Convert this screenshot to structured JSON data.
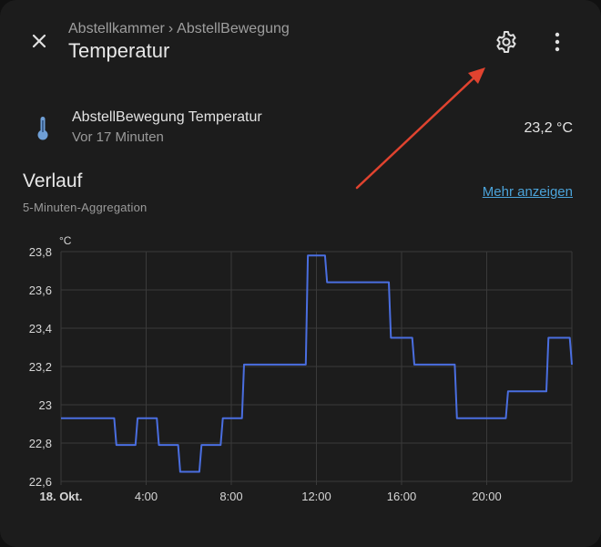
{
  "header": {
    "breadcrumb_area": "Abstellkammer",
    "breadcrumb_separator": "›",
    "breadcrumb_device": "AbstellBewegung",
    "title": "Temperatur",
    "close_icon": "close-icon",
    "settings_icon": "gear-icon",
    "more_icon": "more-vertical-icon"
  },
  "entity": {
    "icon": "thermometer-icon",
    "name": "AbstellBewegung Temperatur",
    "last_changed": "Vor 17 Minuten",
    "state": "23,2 °C"
  },
  "history": {
    "title": "Verlauf",
    "subtitle": "5-Minuten-Aggregation",
    "more_link": "Mehr anzeigen"
  },
  "annotation": {
    "color": "#e0432f"
  },
  "chart_data": {
    "type": "line",
    "unit_label": "°C",
    "ylim": [
      22.6,
      23.8
    ],
    "y_ticks": [
      {
        "value": 22.6,
        "label": "22,6"
      },
      {
        "value": 22.8,
        "label": "22,8"
      },
      {
        "value": 23.0,
        "label": "23"
      },
      {
        "value": 23.2,
        "label": "23,2"
      },
      {
        "value": 23.4,
        "label": "23,4"
      },
      {
        "value": 23.6,
        "label": "23,6"
      },
      {
        "value": 23.8,
        "label": "23,8"
      }
    ],
    "xlim": [
      0,
      24
    ],
    "x_ticks": [
      {
        "value": 0,
        "label": "18. Okt.",
        "bold": true
      },
      {
        "value": 4,
        "label": "4:00"
      },
      {
        "value": 8,
        "label": "8:00"
      },
      {
        "value": 12,
        "label": "12:00"
      },
      {
        "value": 16,
        "label": "16:00"
      },
      {
        "value": 20,
        "label": "20:00"
      }
    ],
    "grid": true,
    "series": [
      {
        "color": "#4a6ee0",
        "points": [
          [
            0,
            22.93
          ],
          [
            2.5,
            22.93
          ],
          [
            2.6,
            22.79
          ],
          [
            3.5,
            22.79
          ],
          [
            3.6,
            22.93
          ],
          [
            4.5,
            22.93
          ],
          [
            4.6,
            22.79
          ],
          [
            5.5,
            22.79
          ],
          [
            5.6,
            22.65
          ],
          [
            6.5,
            22.65
          ],
          [
            6.6,
            22.79
          ],
          [
            7.5,
            22.79
          ],
          [
            7.6,
            22.93
          ],
          [
            8.5,
            22.93
          ],
          [
            8.6,
            23.21
          ],
          [
            11.5,
            23.21
          ],
          [
            11.6,
            23.78
          ],
          [
            12.4,
            23.78
          ],
          [
            12.5,
            23.64
          ],
          [
            15.4,
            23.64
          ],
          [
            15.5,
            23.35
          ],
          [
            16.5,
            23.35
          ],
          [
            16.6,
            23.21
          ],
          [
            18.5,
            23.21
          ],
          [
            18.6,
            22.93
          ],
          [
            20.9,
            22.93
          ],
          [
            21.0,
            23.07
          ],
          [
            22.8,
            23.07
          ],
          [
            22.9,
            23.35
          ],
          [
            23.9,
            23.35
          ],
          [
            24.0,
            23.21
          ]
        ]
      }
    ]
  }
}
